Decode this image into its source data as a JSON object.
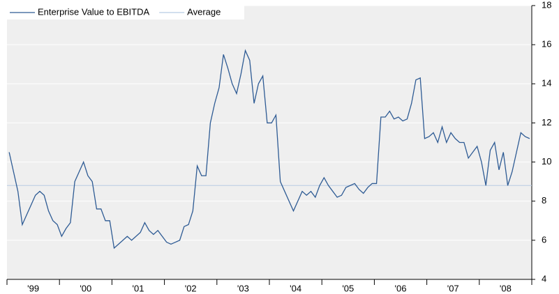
{
  "chart_data": {
    "type": "line",
    "categories": [
      null,
      null,
      null,
      null,
      null,
      null,
      "'99",
      null,
      null,
      null,
      null,
      null,
      null,
      null,
      null,
      null,
      null,
      null,
      "'00",
      null,
      null,
      null,
      null,
      null,
      null,
      null,
      null,
      null,
      null,
      null,
      "'01",
      null,
      null,
      null,
      null,
      null,
      null,
      null,
      null,
      null,
      null,
      null,
      "'02",
      null,
      null,
      null,
      null,
      null,
      null,
      null,
      null,
      null,
      null,
      null,
      "'03",
      null,
      null,
      null,
      null,
      null,
      null,
      null,
      null,
      null,
      null,
      null,
      "'04",
      null,
      null,
      null,
      null,
      null,
      null,
      null,
      null,
      null,
      null,
      null,
      "'05",
      null,
      null,
      null,
      null,
      null,
      null,
      null,
      null,
      null,
      null,
      null,
      "'06",
      null,
      null,
      null,
      null,
      null,
      null,
      null,
      null,
      null,
      null,
      null,
      "'07",
      null,
      null,
      null,
      null,
      null,
      null,
      null,
      null,
      null,
      null,
      null,
      "'08",
      null,
      null,
      null,
      null,
      null
    ],
    "series": [
      {
        "name": "Enterprise Value to EBITDA",
        "color": "#2e5b94",
        "values": [
          10.5,
          9.5,
          8.5,
          6.8,
          7.3,
          7.8,
          8.3,
          8.5,
          8.3,
          7.5,
          7.0,
          6.8,
          6.2,
          6.6,
          6.9,
          9.0,
          9.5,
          10.0,
          9.3,
          9.0,
          7.6,
          7.6,
          7.0,
          7.0,
          5.6,
          5.8,
          6.0,
          6.2,
          6.0,
          6.2,
          6.4,
          6.9,
          6.5,
          6.3,
          6.5,
          6.2,
          5.9,
          5.8,
          5.9,
          6.0,
          6.7,
          6.8,
          7.5,
          9.8,
          9.3,
          9.3,
          12.0,
          13.0,
          13.8,
          15.5,
          14.8,
          14.0,
          13.5,
          14.5,
          15.7,
          15.2,
          13.0,
          14.0,
          14.4,
          12.0,
          12.0,
          12.4,
          9.0,
          8.5,
          8.0,
          7.5,
          8.0,
          8.5,
          8.3,
          8.5,
          8.2,
          8.8,
          9.2,
          8.8,
          8.5,
          8.2,
          8.3,
          8.7,
          8.8,
          8.9,
          8.6,
          8.4,
          8.7,
          8.9,
          8.9,
          12.3,
          12.3,
          12.6,
          12.2,
          12.3,
          12.1,
          12.2,
          13.0,
          14.2,
          14.3,
          11.2,
          11.3,
          11.5,
          11.0,
          11.8,
          11.0,
          11.5,
          11.2,
          11.0,
          11.0,
          10.2,
          10.5,
          10.8,
          10.0,
          8.8,
          10.6,
          11.0,
          9.6,
          10.5,
          8.8,
          9.5,
          10.5,
          11.5,
          11.3,
          11.2
        ]
      }
    ],
    "average": {
      "name": "Average",
      "color": "#b8cce4",
      "value": 8.8
    },
    "ylim": [
      4,
      18
    ],
    "yticks": [
      4,
      6,
      8,
      10,
      12,
      14,
      16,
      18
    ],
    "grid": true
  }
}
